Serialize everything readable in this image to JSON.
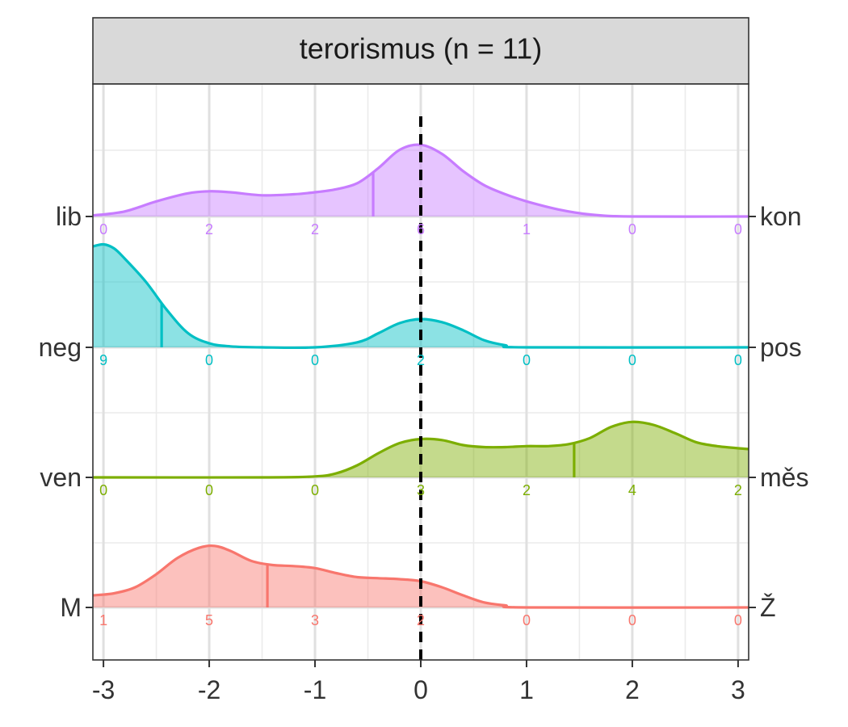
{
  "chart_data": {
    "type": "ridgeline",
    "facet_title": "terorismus (n = 11)",
    "x_ticks": [
      "-3",
      "-2",
      "-1",
      "0",
      "1",
      "2",
      "3"
    ],
    "x_values": [
      -3,
      -2,
      -1,
      0,
      1,
      2,
      3
    ],
    "xlim": [
      -3.1,
      3.1
    ],
    "reference_line_x": 0,
    "grid": true,
    "series": [
      {
        "left_label": "lib",
        "right_label": "kon",
        "color": "#C77CFF",
        "counts": [
          0,
          2,
          2,
          6,
          1,
          0,
          0
        ],
        "count_labels": [
          "0",
          "2",
          "2",
          "6",
          "1",
          "0",
          "0"
        ],
        "mean": -0.45,
        "density": [
          [
            -3.1,
            0.01
          ],
          [
            -2.8,
            0.05
          ],
          [
            -2.5,
            0.15
          ],
          [
            -2.2,
            0.23
          ],
          [
            -2.0,
            0.25
          ],
          [
            -1.8,
            0.24
          ],
          [
            -1.5,
            0.21
          ],
          [
            -1.2,
            0.22
          ],
          [
            -1.0,
            0.24
          ],
          [
            -0.8,
            0.27
          ],
          [
            -0.6,
            0.33
          ],
          [
            -0.4,
            0.48
          ],
          [
            -0.2,
            0.66
          ],
          [
            0.0,
            0.71
          ],
          [
            0.2,
            0.62
          ],
          [
            0.4,
            0.45
          ],
          [
            0.6,
            0.31
          ],
          [
            0.8,
            0.22
          ],
          [
            1.0,
            0.15
          ],
          [
            1.3,
            0.07
          ],
          [
            1.6,
            0.02
          ],
          [
            2.0,
            0.0
          ],
          [
            3.1,
            0.0
          ]
        ]
      },
      {
        "left_label": "neg",
        "right_label": "pos",
        "color": "#00BFC4",
        "counts": [
          9,
          0,
          0,
          2,
          0,
          0,
          0
        ],
        "count_labels": [
          "9",
          "0",
          "0",
          "2",
          "0",
          "0",
          "0"
        ],
        "mean": -2.45,
        "density": [
          [
            -3.1,
            1.0
          ],
          [
            -3.0,
            1.02
          ],
          [
            -2.9,
            0.98
          ],
          [
            -2.8,
            0.88
          ],
          [
            -2.6,
            0.65
          ],
          [
            -2.4,
            0.37
          ],
          [
            -2.2,
            0.14
          ],
          [
            -2.0,
            0.04
          ],
          [
            -1.8,
            0.01
          ],
          [
            -1.5,
            0.0
          ],
          [
            -1.0,
            0.0
          ],
          [
            -0.6,
            0.05
          ],
          [
            -0.4,
            0.14
          ],
          [
            -0.2,
            0.24
          ],
          [
            0.0,
            0.28
          ],
          [
            0.2,
            0.25
          ],
          [
            0.4,
            0.17
          ],
          [
            0.6,
            0.07
          ],
          [
            0.8,
            0.02
          ],
          [
            1.0,
            0.0
          ],
          [
            3.1,
            0.0
          ]
        ]
      },
      {
        "left_label": "ven",
        "right_label": "měs",
        "color": "#7CAE00",
        "counts": [
          0,
          0,
          0,
          3,
          2,
          4,
          2
        ],
        "count_labels": [
          "0",
          "0",
          "0",
          "3",
          "2",
          "4",
          "2"
        ],
        "mean": 1.45,
        "density": [
          [
            -3.1,
            0.0
          ],
          [
            -1.5,
            0.0
          ],
          [
            -1.0,
            0.01
          ],
          [
            -0.8,
            0.04
          ],
          [
            -0.6,
            0.12
          ],
          [
            -0.4,
            0.24
          ],
          [
            -0.2,
            0.34
          ],
          [
            0.0,
            0.38
          ],
          [
            0.2,
            0.37
          ],
          [
            0.4,
            0.32
          ],
          [
            0.6,
            0.3
          ],
          [
            0.8,
            0.3
          ],
          [
            1.0,
            0.31
          ],
          [
            1.2,
            0.31
          ],
          [
            1.4,
            0.33
          ],
          [
            1.6,
            0.39
          ],
          [
            1.8,
            0.5
          ],
          [
            2.0,
            0.55
          ],
          [
            2.2,
            0.52
          ],
          [
            2.4,
            0.44
          ],
          [
            2.6,
            0.35
          ],
          [
            2.8,
            0.31
          ],
          [
            3.1,
            0.28
          ]
        ]
      },
      {
        "left_label": "M",
        "right_label": "Ž",
        "color": "#F8766D",
        "counts": [
          1,
          5,
          3,
          2,
          0,
          0,
          0
        ],
        "count_labels": [
          "1",
          "5",
          "3",
          "2",
          "0",
          "0",
          "0"
        ],
        "mean": -1.45,
        "density": [
          [
            -3.1,
            0.12
          ],
          [
            -2.9,
            0.14
          ],
          [
            -2.7,
            0.2
          ],
          [
            -2.5,
            0.33
          ],
          [
            -2.3,
            0.49
          ],
          [
            -2.1,
            0.59
          ],
          [
            -1.95,
            0.61
          ],
          [
            -1.8,
            0.56
          ],
          [
            -1.6,
            0.46
          ],
          [
            -1.4,
            0.42
          ],
          [
            -1.2,
            0.41
          ],
          [
            -1.0,
            0.39
          ],
          [
            -0.8,
            0.34
          ],
          [
            -0.6,
            0.3
          ],
          [
            -0.4,
            0.29
          ],
          [
            -0.2,
            0.28
          ],
          [
            0.0,
            0.26
          ],
          [
            0.2,
            0.2
          ],
          [
            0.4,
            0.12
          ],
          [
            0.6,
            0.05
          ],
          [
            0.8,
            0.02
          ],
          [
            1.0,
            0.0
          ],
          [
            3.1,
            0.0
          ]
        ]
      }
    ]
  }
}
